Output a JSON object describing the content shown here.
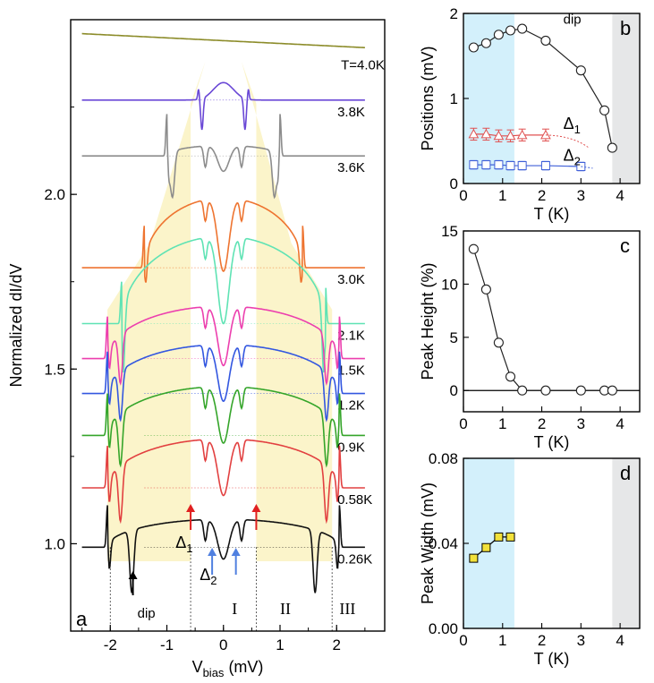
{
  "chart_data": [
    {
      "id": "a",
      "type": "line",
      "panel_label": "a",
      "xlabel_main": "V",
      "xlabel_sub": "bias",
      "xlabel_unit": " (mV)",
      "ylabel": "Normalized dI/dV",
      "xlim": [
        -2.7,
        2.85
      ],
      "ylim": [
        0.75,
        2.5
      ],
      "xticks": [
        -2,
        -1,
        0,
        1,
        2
      ],
      "xtick_labels": [
        "-2",
        "-1",
        "0",
        "1",
        "2"
      ],
      "yticks": [
        1.0,
        1.5,
        2.0
      ],
      "ytick_labels": [
        "1.0",
        "1.5",
        "2.0"
      ],
      "annotations": {
        "delta1": "Δ",
        "delta1_sub": "1",
        "delta2": "Δ",
        "delta2_sub": "2",
        "dip": "dip",
        "region_1": "I",
        "region_2": "II",
        "region_3": "III"
      },
      "region_bounds_mV": [
        -2.0,
        -0.58,
        0.58,
        1.92
      ],
      "series": [
        {
          "name": "T=4.0K",
          "color": "#8c8c2a",
          "offset": 2.44,
          "gap": 0.0,
          "dip_depth": 0,
          "dip_pos": 0,
          "peak": 0,
          "edge": 0,
          "flat": true
        },
        {
          "name": "3.8K",
          "color": "#6a48d6",
          "offset": 2.27,
          "gap": 0.42,
          "dip_depth": 0.09,
          "dip_pos": 0.38,
          "peak": 0.03,
          "edge": 0.3,
          "inverted": true
        },
        {
          "name": "3.6K",
          "color": "#8c8c8c",
          "offset": 2.11,
          "gap": 1.0,
          "dip_depth": 0.13,
          "dip_pos": 0.9,
          "peak": 0.03,
          "edge": 0.9
        },
        {
          "name": "3.0K",
          "color": "#ee7430",
          "offset": 1.79,
          "gap": 1.4,
          "dip_depth": 0.12,
          "dip_pos": 1.42,
          "peak": 0.2,
          "edge": 1.4
        },
        {
          "name": "2.1K",
          "color": "#5fe3b4",
          "offset": 1.63,
          "gap": 1.8,
          "dip_depth": 0.14,
          "dip_pos": 1.78,
          "peak": 0.25,
          "edge": 1.9
        },
        {
          "name": "1.5K",
          "color": "#ec3fae",
          "offset": 1.53,
          "gap": 2.05,
          "dip_depth": 0.14,
          "dip_pos": 1.82,
          "peak": 0.15,
          "edge": 2.05
        },
        {
          "name": "1.2K",
          "color": "#3357e0",
          "offset": 1.43,
          "gap": 2.05,
          "dip_depth": 0.14,
          "dip_pos": 1.82,
          "peak": 0.14,
          "edge": 2.05
        },
        {
          "name": "0.9K",
          "color": "#35a52a",
          "offset": 1.31,
          "gap": 2.05,
          "dip_depth": 0.15,
          "dip_pos": 1.82,
          "peak": 0.14,
          "edge": 2.05
        },
        {
          "name": "0.58K",
          "color": "#e24040",
          "offset": 1.16,
          "gap": 2.05,
          "dip_depth": 0.16,
          "dip_pos": 1.82,
          "peak": 0.14,
          "edge": 2.05
        },
        {
          "name": "0.26K",
          "color": "#111111",
          "offset": 0.99,
          "gap": 2.05,
          "dip_depth": 0.18,
          "dip_pos": 1.62,
          "peak": 0.08,
          "edge": 2.05
        }
      ]
    },
    {
      "id": "b",
      "type": "scatter",
      "panel_label": "b",
      "xlabel": "T (K)",
      "ylabel": "Positions (mV)",
      "xlim": [
        0,
        4.5
      ],
      "ylim": [
        0,
        2
      ],
      "xticks": [
        0,
        1,
        2,
        3,
        4
      ],
      "yticks": [
        0,
        1,
        2
      ],
      "shaded_regions": [
        [
          0,
          1.3,
          "#d3f0fb"
        ],
        [
          3.8,
          4.5,
          "#e6e7e8"
        ]
      ],
      "annotations": {
        "dip": "dip",
        "delta1": "Δ",
        "delta1_sub": "1",
        "delta2": "Δ",
        "delta2_sub": "2"
      },
      "series": [
        {
          "name": "dip",
          "marker": "circle",
          "color": "#222222",
          "x": [
            0.26,
            0.58,
            0.9,
            1.2,
            1.5,
            2.1,
            3.0,
            3.6,
            3.8
          ],
          "y": [
            1.6,
            1.65,
            1.75,
            1.8,
            1.82,
            1.68,
            1.33,
            0.86,
            0.42
          ]
        },
        {
          "name": "Δ1",
          "marker": "triangle",
          "color": "#e05050",
          "x": [
            0.26,
            0.58,
            0.9,
            1.2,
            1.5,
            2.1
          ],
          "y": [
            0.58,
            0.58,
            0.56,
            0.56,
            0.57,
            0.57
          ],
          "err": 0.07
        },
        {
          "name": "Δ2",
          "marker": "square",
          "color": "#4060d8",
          "x": [
            0.26,
            0.58,
            0.9,
            1.2,
            1.5,
            2.1,
            3.0
          ],
          "y": [
            0.22,
            0.22,
            0.22,
            0.21,
            0.21,
            0.21,
            0.2
          ],
          "err": 0.05
        }
      ]
    },
    {
      "id": "c",
      "type": "scatter",
      "panel_label": "c",
      "xlabel": "T (K)",
      "ylabel": "Peak Height (%)",
      "xlim": [
        0,
        4.5
      ],
      "ylim": [
        -2,
        15
      ],
      "xticks": [
        0,
        1,
        2,
        3,
        4
      ],
      "yticks": [
        0,
        5,
        10,
        15
      ],
      "series": [
        {
          "name": "peak height",
          "marker": "circle",
          "color": "#222222",
          "x": [
            0.26,
            0.58,
            0.9,
            1.2,
            1.5,
            2.1,
            3.0,
            3.6,
            3.8
          ],
          "y": [
            13.3,
            9.5,
            4.5,
            1.3,
            0,
            0,
            0,
            0,
            0
          ]
        }
      ]
    },
    {
      "id": "d",
      "type": "scatter",
      "panel_label": "d",
      "xlabel": "T (K)",
      "ylabel": "Peak Width (mV)",
      "xlim": [
        0,
        4.5
      ],
      "ylim": [
        0,
        0.08
      ],
      "xticks": [
        0,
        1,
        2,
        3,
        4
      ],
      "yticks": [
        0,
        0.04,
        0.08
      ],
      "ytick_labels": [
        "0.00",
        "0.04",
        "0.08"
      ],
      "shaded_regions": [
        [
          0,
          1.3,
          "#d3f0fb"
        ],
        [
          3.8,
          4.5,
          "#e6e7e8"
        ]
      ],
      "series": [
        {
          "name": "peak width",
          "marker": "square",
          "color": "#f2e13a",
          "x": [
            0.26,
            0.58,
            0.9,
            1.2
          ],
          "y": [
            0.033,
            0.038,
            0.043,
            0.043
          ]
        }
      ]
    }
  ]
}
